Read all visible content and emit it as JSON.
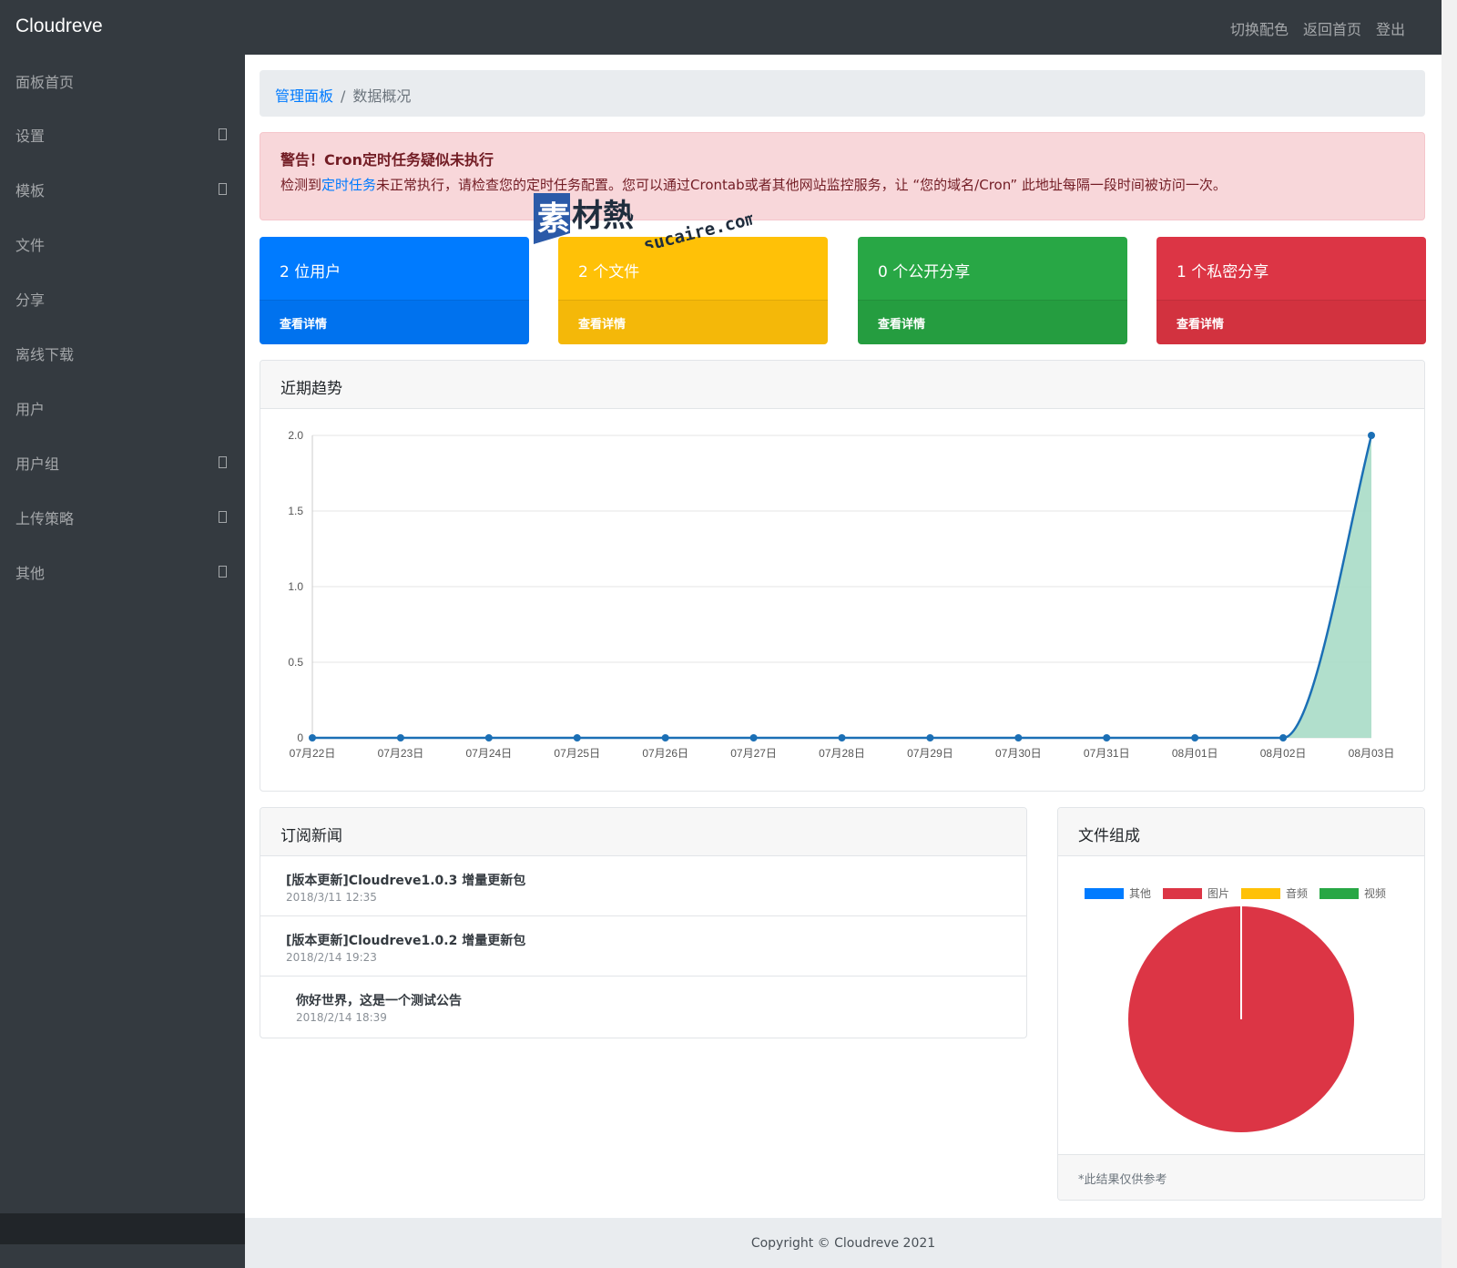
{
  "app": {
    "brand": "Cloudreve"
  },
  "nav": {
    "links": [
      "切换配色",
      "返回首页",
      "登出"
    ]
  },
  "sidebar": {
    "items": [
      {
        "label": "面板首页",
        "arrow": false
      },
      {
        "label": "设置",
        "arrow": true
      },
      {
        "label": "模板",
        "arrow": true
      },
      {
        "label": "文件",
        "arrow": false
      },
      {
        "label": "分享",
        "arrow": false
      },
      {
        "label": "离线下载",
        "arrow": false
      },
      {
        "label": "用户",
        "arrow": false
      },
      {
        "label": "用户组",
        "arrow": true
      },
      {
        "label": "上传策略",
        "arrow": true
      },
      {
        "label": "其他",
        "arrow": true
      }
    ]
  },
  "breadcrumb": {
    "root": "管理面板",
    "separator": "/",
    "current": "数据概况"
  },
  "alert": {
    "title": "警告！Cron定时任务疑似未执行",
    "body_prefix": "检测到",
    "body_link": "定时任务",
    "body_suffix": "未正常执行，请检查您的定时任务配置。您可以通过Crontab或者其他网站监控服务，让 “您的域名/Cron” 此地址每隔一段时间被访问一次。"
  },
  "stats": [
    {
      "label": "2 位用户",
      "action": "查看详情",
      "color": "#007bff",
      "color_bottom": "#0072ee"
    },
    {
      "label": "2 个文件",
      "action": "查看详情",
      "color": "#ffc107",
      "color_bottom": "#f4b809"
    },
    {
      "label": "0 个公开分享",
      "action": "查看详情",
      "color": "#28a745",
      "color_bottom": "#259d40"
    },
    {
      "label": "1 个私密分享",
      "action": "查看详情",
      "color": "#dc3545",
      "color_bottom": "#d2323f"
    }
  ],
  "trend": {
    "title": "近期趋势"
  },
  "news": {
    "title": "订阅新闻",
    "items": [
      {
        "title": "[版本更新]Cloudreve1.0.3 增量更新包",
        "date": "2018/3/11 12:35"
      },
      {
        "title": "[版本更新]Cloudreve1.0.2 增量更新包",
        "date": "2018/2/14 19:23"
      },
      {
        "title": "你好世界，这是一个测试公告",
        "date": "2018/2/14 18:39"
      }
    ]
  },
  "files": {
    "title": "文件组成",
    "note": "*此结果仅供参考"
  },
  "footer": {
    "text": "Copyright © Cloudreve 2021"
  },
  "watermark": {
    "cn": "素材熱",
    "en": "sucaire.com"
  },
  "chart_data": [
    {
      "type": "area",
      "title": "近期趋势",
      "categories": [
        "07月22日",
        "07月23日",
        "07月24日",
        "07月25日",
        "07月26日",
        "07月27日",
        "07月28日",
        "07月29日",
        "07月30日",
        "07月31日",
        "08月01日",
        "08月02日",
        "08月03日"
      ],
      "values": [
        0,
        0,
        0,
        0,
        0,
        0,
        0,
        0,
        0,
        0,
        0,
        0,
        2
      ],
      "ylim": [
        0,
        2
      ],
      "yticks": [
        "0",
        "0.5",
        "1.0",
        "1.5",
        "2.0"
      ],
      "grid": true,
      "line_color": "#1b6fb5",
      "fill_color": "#a8dcc6"
    },
    {
      "type": "pie",
      "title": "文件组成",
      "labels": [
        "其他",
        "图片",
        "音频",
        "视频"
      ],
      "values": [
        0,
        2,
        0,
        0
      ],
      "colors": [
        "#007bff",
        "#dc3545",
        "#ffc107",
        "#28a745"
      ],
      "legend": "top"
    }
  ]
}
